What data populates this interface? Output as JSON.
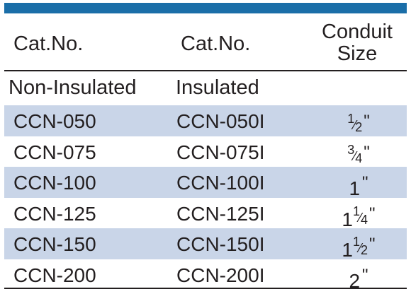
{
  "colors": {
    "accent_bar": "#1a6ea8",
    "row_shade": "#c9d5e8",
    "text": "#231f20"
  },
  "header": {
    "col1": "Cat.No.",
    "col2": "Cat.No.",
    "col3_line1": "Conduit",
    "col3_line2": "Size"
  },
  "subheader": {
    "col1": "Non-Insulated",
    "col2": "Insulated"
  },
  "rows": [
    {
      "non_insulated": "CCN-050",
      "insulated": "CCN-050I",
      "size_whole": "",
      "size_num": "1",
      "size_den": "2",
      "inch": "\"",
      "shaded": true
    },
    {
      "non_insulated": "CCN-075",
      "insulated": "CCN-075I",
      "size_whole": "",
      "size_num": "3",
      "size_den": "4",
      "inch": "\"",
      "shaded": false
    },
    {
      "non_insulated": "CCN-100",
      "insulated": "CCN-100I",
      "size_whole": "1",
      "size_num": "",
      "size_den": "",
      "inch": "\"",
      "shaded": true
    },
    {
      "non_insulated": "CCN-125",
      "insulated": "CCN-125I",
      "size_whole": "1",
      "size_num": "1",
      "size_den": "4",
      "inch": "\"",
      "shaded": false
    },
    {
      "non_insulated": "CCN-150",
      "insulated": "CCN-150I",
      "size_whole": "1",
      "size_num": "1",
      "size_den": "2",
      "inch": "\"",
      "shaded": true
    },
    {
      "non_insulated": "CCN-200",
      "insulated": "CCN-200I",
      "size_whole": "2",
      "size_num": "",
      "size_den": "",
      "inch": "\"",
      "shaded": false
    }
  ]
}
